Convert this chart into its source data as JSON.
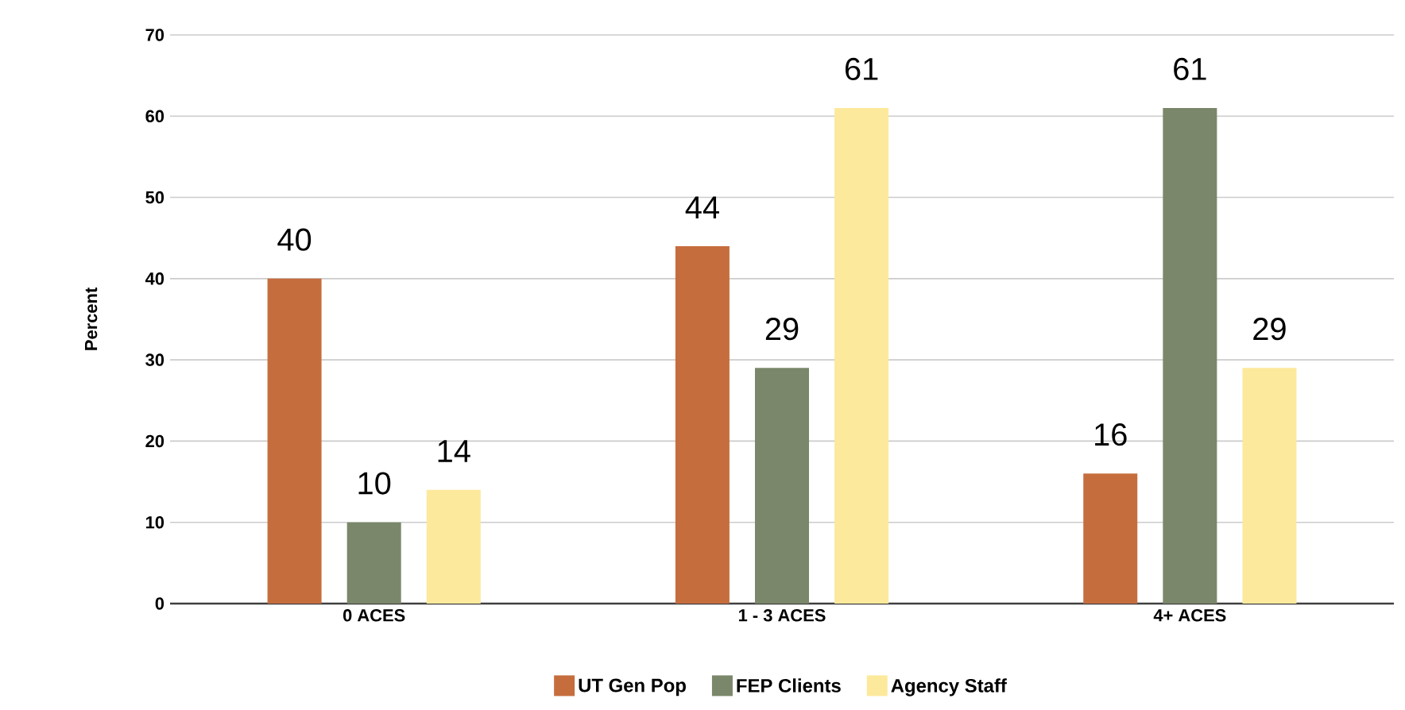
{
  "chart_data": {
    "type": "bar",
    "ylabel": "Percent",
    "categories": [
      "0 ACES",
      "1 - 3 ACES",
      "4+ ACES"
    ],
    "series": [
      {
        "name": "UT Gen Pop",
        "color": "#c66d3e",
        "values": [
          40,
          44,
          16
        ]
      },
      {
        "name": "FEP Clients",
        "color": "#7a876a",
        "values": [
          10,
          29,
          61
        ]
      },
      {
        "name": "Agency Staff",
        "color": "#fde99c",
        "values": [
          14,
          61,
          29
        ]
      }
    ],
    "ylim": [
      0,
      70
    ],
    "yticks": [
      0,
      10,
      20,
      30,
      40,
      50,
      60,
      70
    ],
    "grid": "y",
    "legend": "bottom",
    "data_labels": true
  }
}
